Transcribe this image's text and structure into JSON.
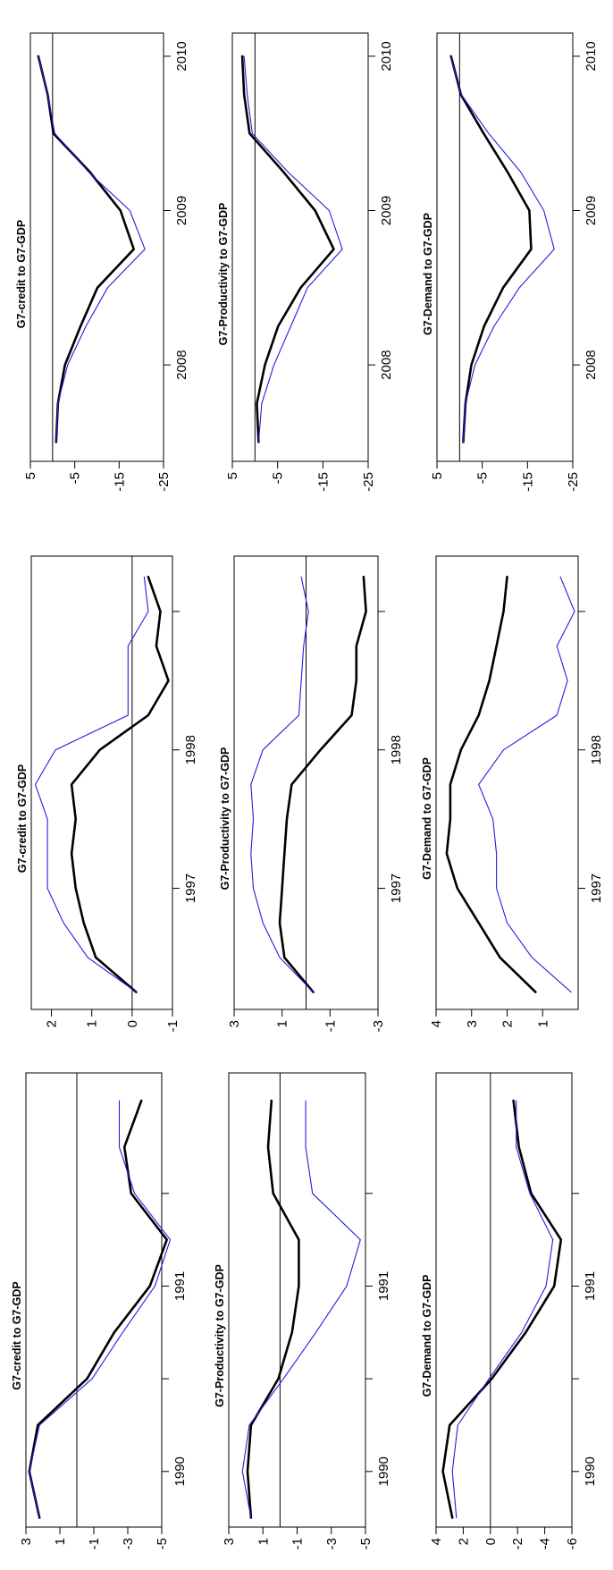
{
  "colors": {
    "series_black": "#000000",
    "series_blue": "#1f1fe0"
  },
  "chart_data": [
    {
      "type": "line",
      "title": "G7-credit to G7-GDP",
      "ylim": [
        -5,
        3
      ],
      "yticks": [
        3,
        1,
        -1,
        -3,
        -5
      ],
      "ytick_labels": [
        "3",
        "1",
        "-1",
        "-3",
        "-5"
      ],
      "x": [
        1,
        2,
        3,
        4,
        5,
        6,
        7,
        8,
        9,
        10
      ],
      "xlim": [
        0.8,
        10.6
      ],
      "xticks": [
        2,
        4,
        6,
        8
      ],
      "xtick_labels": [
        "1990",
        "",
        "1991",
        ""
      ],
      "series": [
        {
          "values": [
            2.2,
            2.8,
            2.3,
            -0.6,
            -2.2,
            -4.3,
            -5.3,
            -3.2,
            -2.8,
            -3.8
          ]
        },
        {
          "values": [
            2.2,
            2.8,
            2.2,
            -0.9,
            -2.7,
            -4.6,
            -5.5,
            -3.4,
            -2.5,
            -2.5
          ]
        }
      ]
    },
    {
      "type": "line",
      "title": "G7-credit to G7-GDP",
      "ylim": [
        -1,
        2.5
      ],
      "yticks": [
        2,
        1,
        0,
        -1
      ],
      "ytick_labels": [
        "2",
        "1",
        "0",
        "-1"
      ],
      "x": [
        1,
        2,
        3,
        4,
        5,
        6,
        7,
        8,
        9,
        10,
        11,
        12,
        13
      ],
      "xlim": [
        0.5,
        13.6
      ],
      "xticks": [
        4,
        8,
        12
      ],
      "xtick_labels": [
        "1997",
        "1998",
        ""
      ],
      "series": [
        {
          "values": [
            -0.1,
            0.9,
            1.2,
            1.4,
            1.5,
            1.4,
            1.5,
            0.8,
            -0.4,
            -0.9,
            -0.6,
            -0.7,
            -0.4
          ]
        },
        {
          "values": [
            -0.1,
            1.1,
            1.7,
            2.1,
            2.1,
            2.1,
            2.4,
            1.9,
            0.1,
            0.1,
            0.1,
            -0.4,
            -0.3
          ]
        }
      ]
    },
    {
      "type": "line",
      "title": "G7-credit to G7-GDP",
      "ylim": [
        -25,
        5
      ],
      "yticks": [
        5,
        -5,
        -15,
        -25
      ],
      "ytick_labels": [
        "5",
        "-5",
        "-15",
        "-25"
      ],
      "x": [
        1,
        2,
        3,
        4,
        5,
        6,
        7,
        8,
        9,
        10,
        11
      ],
      "xlim": [
        0.5,
        11.6
      ],
      "xticks": [
        3,
        7,
        11
      ],
      "xtick_labels": [
        "2008",
        "2009",
        "2010"
      ],
      "series": [
        {
          "values": [
            -0.8,
            -1.2,
            -2.8,
            -6.3,
            -10.1,
            -18.3,
            -15.3,
            -8.4,
            -0.2,
            1.1,
            3.2
          ]
        },
        {
          "values": [
            -0.8,
            -1.2,
            -3.4,
            -7.5,
            -12.4,
            -20.8,
            -17.4,
            -8.1,
            -0.5,
            1.1,
            3.2
          ]
        }
      ]
    },
    {
      "type": "line",
      "title": "G7-Productivity to G7-GDP",
      "ylim": [
        -5,
        3
      ],
      "yticks": [
        3,
        1,
        -1,
        -3,
        -5
      ],
      "ytick_labels": [
        "3",
        "1",
        "-1",
        "-3",
        "-5"
      ],
      "x": [
        1,
        2,
        3,
        4,
        5,
        6,
        7,
        8,
        9,
        10
      ],
      "xlim": [
        0.8,
        10.6
      ],
      "xticks": [
        2,
        4,
        6,
        8
      ],
      "xtick_labels": [
        "1990",
        "",
        "1991",
        ""
      ],
      "series": [
        {
          "values": [
            1.7,
            1.9,
            1.7,
            0.1,
            -0.7,
            -1.1,
            -1.1,
            0.4,
            0.7,
            0.5
          ]
        },
        {
          "values": [
            1.7,
            2.2,
            1.8,
            -0.2,
            -2.1,
            -3.9,
            -4.7,
            -1.9,
            -1.5,
            -1.5
          ]
        }
      ]
    },
    {
      "type": "line",
      "title": "G7-Productivity to G7-GDP",
      "ylim": [
        -3,
        3
      ],
      "yticks": [
        3,
        1,
        -1,
        -3
      ],
      "ytick_labels": [
        "3",
        "1",
        "-1",
        "-3"
      ],
      "x": [
        1,
        2,
        3,
        4,
        5,
        6,
        7,
        8,
        9,
        10,
        11,
        12,
        13
      ],
      "xlim": [
        0.5,
        13.6
      ],
      "xticks": [
        4,
        8,
        12
      ],
      "xtick_labels": [
        "1997",
        "1998",
        ""
      ],
      "series": [
        {
          "values": [
            -0.3,
            0.9,
            1.1,
            1.0,
            0.9,
            0.8,
            0.6,
            -0.6,
            -1.9,
            -2.1,
            -2.1,
            -2.5,
            -2.4
          ]
        },
        {
          "values": [
            -0.3,
            1.1,
            1.8,
            2.2,
            2.3,
            2.2,
            2.3,
            1.8,
            0.3,
            0.2,
            0.1,
            -0.1,
            0.2
          ]
        }
      ]
    },
    {
      "type": "line",
      "title": "G7-Productivity to G7-GDP",
      "ylim": [
        -25,
        5
      ],
      "yticks": [
        5,
        -5,
        -15,
        -25
      ],
      "ytick_labels": [
        "5",
        "-5",
        "-15",
        "-25"
      ],
      "x": [
        1,
        2,
        3,
        4,
        5,
        6,
        7,
        8,
        9,
        10,
        11
      ],
      "xlim": [
        0.5,
        11.6
      ],
      "xticks": [
        3,
        7,
        11
      ],
      "xtick_labels": [
        "2008",
        "2009",
        "2010"
      ],
      "series": [
        {
          "values": [
            -0.8,
            -0.4,
            -2.2,
            -5.1,
            -10.1,
            -17.4,
            -13.3,
            -6.3,
            1.2,
            2.4,
            2.8
          ]
        },
        {
          "values": [
            -0.8,
            -1.5,
            -4.2,
            -7.9,
            -11.6,
            -19.3,
            -16.4,
            -7.3,
            0.6,
            1.7,
            2.4
          ]
        }
      ]
    },
    {
      "type": "line",
      "title": "G7-Demand to G7-GDP",
      "ylim": [
        -6,
        4
      ],
      "yticks": [
        4,
        2,
        0,
        -2,
        -4,
        -6
      ],
      "ytick_labels": [
        "4",
        "2",
        "0",
        "-2",
        "-4",
        "-6"
      ],
      "x": [
        1,
        2,
        3,
        4,
        5,
        6,
        7,
        8,
        9,
        10
      ],
      "xlim": [
        0.8,
        10.6
      ],
      "xticks": [
        2,
        4,
        6,
        8
      ],
      "xtick_labels": [
        "1990",
        "",
        "1991",
        ""
      ],
      "series": [
        {
          "values": [
            2.8,
            3.5,
            3.0,
            -0.1,
            -2.6,
            -4.7,
            -5.2,
            -3.0,
            -2.1,
            -1.7
          ]
        },
        {
          "values": [
            2.5,
            2.8,
            2.4,
            0.1,
            -2.3,
            -4.1,
            -4.6,
            -2.9,
            -1.9,
            -1.9
          ]
        }
      ]
    },
    {
      "type": "line",
      "title": "G7-Demand to G7-GDP",
      "ylim": [
        0,
        4
      ],
      "yticks": [
        4,
        3,
        2,
        1
      ],
      "ytick_labels": [
        "4",
        "3",
        "2",
        "1"
      ],
      "x": [
        1,
        2,
        3,
        4,
        5,
        6,
        7,
        8,
        9,
        10,
        11,
        12,
        13
      ],
      "xlim": [
        0.5,
        13.6
      ],
      "xticks": [
        4,
        8,
        12
      ],
      "xtick_labels": [
        "1997",
        "1998",
        ""
      ],
      "series": [
        {
          "values": [
            1.2,
            2.2,
            2.8,
            3.4,
            3.7,
            3.6,
            3.6,
            3.3,
            2.8,
            2.5,
            2.3,
            2.1,
            2.0
          ]
        },
        {
          "values": [
            0.2,
            1.3,
            2.0,
            2.3,
            2.3,
            2.4,
            2.8,
            2.1,
            0.6,
            0.3,
            0.6,
            0.1,
            0.5
          ]
        }
      ]
    },
    {
      "type": "line",
      "title": "G7-Demand to G7-GDP",
      "ylim": [
        -25,
        5
      ],
      "yticks": [
        5,
        -5,
        -15,
        -25
      ],
      "ytick_labels": [
        "5",
        "-5",
        "-15",
        "-25"
      ],
      "x": [
        1,
        2,
        3,
        4,
        5,
        6,
        7,
        8,
        9,
        10,
        11
      ],
      "xlim": [
        0.5,
        11.6
      ],
      "xticks": [
        3,
        7,
        11
      ],
      "xtick_labels": [
        "2008",
        "2009",
        "2010"
      ],
      "series": [
        {
          "values": [
            -0.8,
            -1.3,
            -2.6,
            -5.4,
            -9.6,
            -15.8,
            -15.4,
            -10.6,
            -5.3,
            -0.3,
            1.9
          ]
        },
        {
          "values": [
            -0.8,
            -1.3,
            -3.4,
            -7.6,
            -13.2,
            -20.9,
            -18.6,
            -13.5,
            -6.4,
            -0.4,
            2.0
          ]
        }
      ]
    }
  ]
}
